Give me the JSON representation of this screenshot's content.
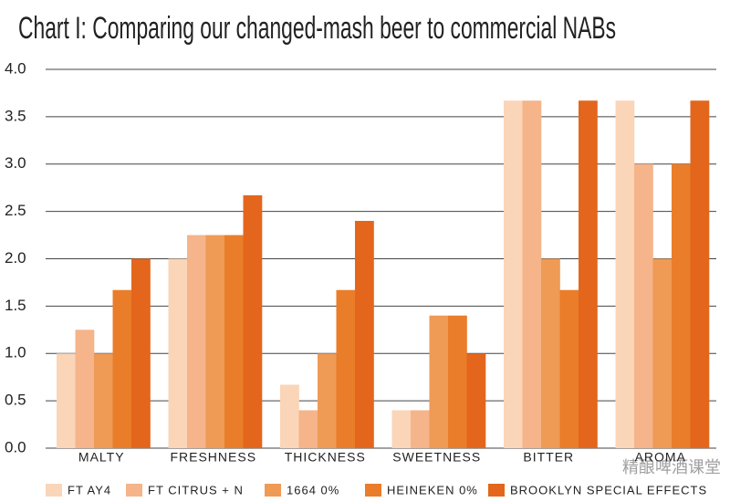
{
  "chart_data": {
    "type": "bar",
    "title": "Chart I:  Comparing our changed-mash beer to commercial NABs",
    "categories": [
      "MALTY",
      "FRESHNESS",
      "THICKNESS",
      "SWEETNESS",
      "BITTER",
      "AROMA"
    ],
    "series": [
      {
        "name": "FT AY4",
        "color": "#fad5b8",
        "values": [
          1.0,
          2.0,
          0.67,
          0.4,
          3.67,
          3.67
        ]
      },
      {
        "name": "FT CITRUS + N",
        "color": "#f5b48a",
        "values": [
          1.25,
          2.25,
          0.4,
          0.4,
          3.67,
          3.0
        ]
      },
      {
        "name": "1664 0%",
        "color": "#ef9a55",
        "values": [
          1.0,
          2.25,
          1.0,
          1.4,
          2.0,
          2.0
        ]
      },
      {
        "name": "HEINEKEN 0%",
        "color": "#ea7d2a",
        "values": [
          1.67,
          2.25,
          1.67,
          1.4,
          1.67,
          3.0
        ]
      },
      {
        "name": "BROOKLYN SPECIAL EFFECTS",
        "color": "#e3661c",
        "values": [
          2.0,
          2.67,
          2.4,
          1.0,
          3.67,
          3.67
        ]
      }
    ],
    "ylim": [
      0,
      4
    ],
    "yticks": [
      {
        "value": 0,
        "label": "0.0"
      },
      {
        "value": 0.5,
        "label": "0.5"
      },
      {
        "value": 1,
        "label": "1.0"
      },
      {
        "value": 1.5,
        "label": "1.5"
      },
      {
        "value": 2,
        "label": "2.0"
      },
      {
        "value": 2.5,
        "label": "2.5"
      },
      {
        "value": 3,
        "label": "3.0"
      },
      {
        "value": 3.5,
        "label": "3.5"
      },
      {
        "value": 4,
        "label": "4.0"
      }
    ],
    "grid": true,
    "legend": "bottom",
    "watermark": "精酿啤酒课堂"
  }
}
